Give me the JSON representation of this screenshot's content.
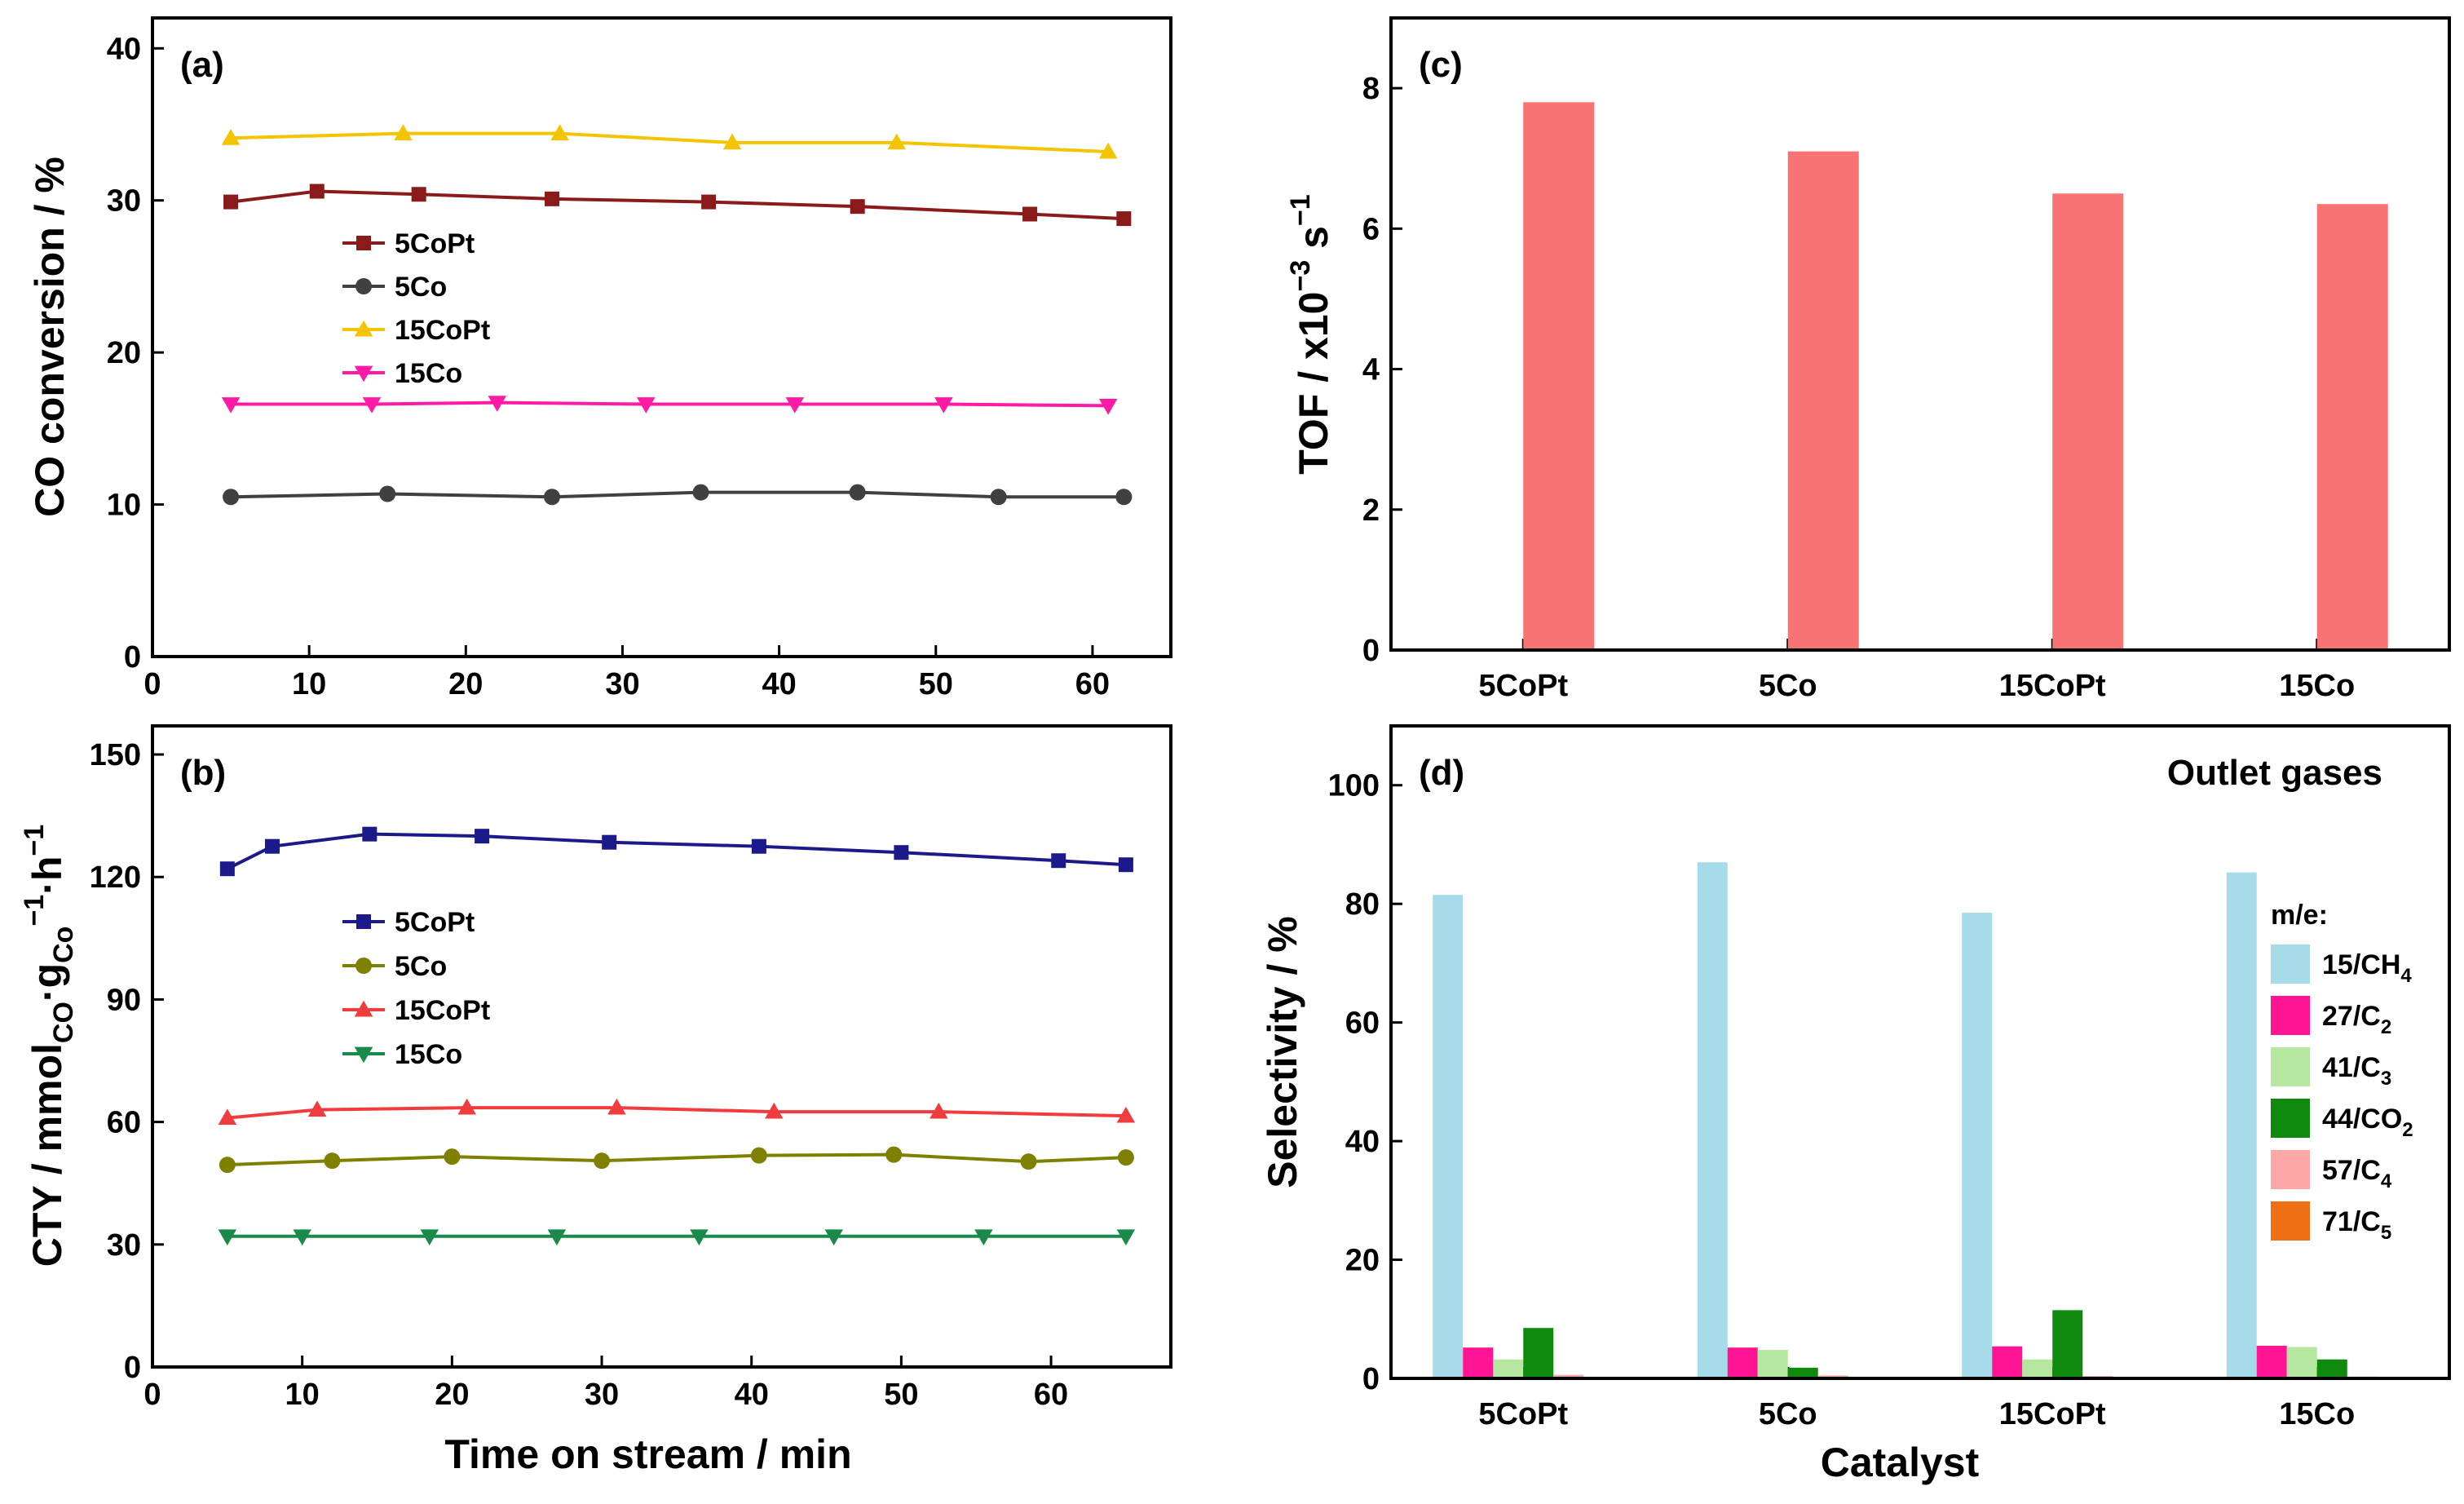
{
  "chart_data": [
    {
      "panel": "(a)",
      "type": "line",
      "xlabel": "",
      "ylabel": "CO conversion / %",
      "xlim": [
        0,
        65
      ],
      "ylim": [
        0,
        42
      ],
      "xticks": [
        0,
        10,
        20,
        30,
        40,
        50,
        60
      ],
      "yticks": [
        0,
        10,
        20,
        30,
        40
      ],
      "legend_position": "center-left",
      "series": [
        {
          "name": "5CoPt",
          "color": "#8b1a1a",
          "marker": "square",
          "x": [
            5,
            10.5,
            17,
            25.5,
            35.5,
            45,
            56,
            62
          ],
          "y": [
            29.9,
            30.6,
            30.4,
            30.1,
            29.9,
            29.6,
            29.1,
            28.8
          ]
        },
        {
          "name": "5Co",
          "color": "#404040",
          "marker": "circle",
          "x": [
            5,
            15,
            25.5,
            35,
            45,
            54,
            62
          ],
          "y": [
            10.5,
            10.7,
            10.5,
            10.8,
            10.8,
            10.5,
            10.5
          ]
        },
        {
          "name": "15CoPt",
          "color": "#f5c400",
          "marker": "triangle-up",
          "x": [
            5,
            16,
            26,
            37,
            47.5,
            61
          ],
          "y": [
            34.1,
            34.4,
            34.4,
            33.8,
            33.8,
            33.2
          ]
        },
        {
          "name": "15Co",
          "color": "#ff1ba6",
          "marker": "triangle-down",
          "x": [
            5,
            14,
            22,
            31.5,
            41,
            50.5,
            61
          ],
          "y": [
            16.6,
            16.6,
            16.7,
            16.6,
            16.6,
            16.6,
            16.5
          ]
        }
      ]
    },
    {
      "panel": "(b)",
      "type": "line",
      "xlabel": "Time on stream / min",
      "ylabel": "CTY / mmol_CO·g_Co^-1·h^-1",
      "ylabel_parts": {
        "main1": "CTY / mmol",
        "sub1": "CO",
        "main2": "·g",
        "sub2": "Co",
        "sup2": "−1",
        "main3": "·h",
        "sup3": "−1"
      },
      "xlim": [
        0,
        68
      ],
      "ylim": [
        0,
        157
      ],
      "xticks": [
        0,
        10,
        20,
        30,
        40,
        50,
        60
      ],
      "yticks": [
        0,
        30,
        60,
        90,
        120,
        150
      ],
      "legend_position": "center-left",
      "series": [
        {
          "name": "5CoPt",
          "color": "#1c1a8a",
          "marker": "square",
          "x": [
            5,
            8,
            14.5,
            22,
            30.5,
            40.5,
            50,
            60.5,
            65
          ],
          "y": [
            122,
            127.5,
            130.5,
            130,
            128.5,
            127.5,
            126,
            124,
            123
          ]
        },
        {
          "name": "5Co",
          "color": "#808000",
          "marker": "circle",
          "x": [
            5,
            12,
            20,
            30,
            40.5,
            49.5,
            58.5,
            65
          ],
          "y": [
            49.5,
            50.5,
            51.5,
            50.5,
            51.8,
            52,
            50.3,
            51.3
          ]
        },
        {
          "name": "15CoPt",
          "color": "#f03c3c",
          "marker": "triangle-up",
          "x": [
            5,
            11,
            21,
            31,
            41.5,
            52.5,
            65
          ],
          "y": [
            61,
            63,
            63.5,
            63.5,
            62.5,
            62.5,
            61.5
          ]
        },
        {
          "name": "15Co",
          "color": "#1a8a4a",
          "marker": "triangle-down",
          "x": [
            5,
            10,
            18.5,
            27,
            36.5,
            45.5,
            55.5,
            65
          ],
          "y": [
            32,
            32,
            32,
            32,
            32,
            32,
            32,
            32
          ]
        }
      ]
    },
    {
      "panel": "(c)",
      "type": "bar",
      "xlabel": "",
      "ylabel": "TOF / x10^-3 s^-1",
      "ylabel_parts": {
        "main1": "TOF / x10",
        "sup1": "−3",
        "main2": " s",
        "sup2": "−1"
      },
      "categories": [
        "5CoPt",
        "5Co",
        "15CoPt",
        "15Co"
      ],
      "values": [
        7.8,
        7.1,
        6.5,
        6.35
      ],
      "color": "#f87474",
      "ylim": [
        0,
        9
      ],
      "yticks": [
        0,
        2,
        4,
        6,
        8
      ]
    },
    {
      "panel": "(d)",
      "type": "bar",
      "title": "Outlet gases",
      "xlabel": "Catalyst",
      "ylabel": "Selectivity / %",
      "ylim": [
        0,
        110
      ],
      "yticks": [
        0,
        20,
        40,
        60,
        80,
        100
      ],
      "categories": [
        "5CoPt",
        "5Co",
        "15CoPt",
        "15Co"
      ],
      "legend_title": "m/e:",
      "legend_position": "right",
      "series": [
        {
          "name": "15/CH4",
          "label_main": "15/CH",
          "label_sub": "4",
          "color": "#a6dbe9",
          "values": [
            81.5,
            87,
            78.5,
            85.3
          ]
        },
        {
          "name": "27/C2",
          "label_main": "27/C",
          "label_sub": "2",
          "color": "#ff1493",
          "values": [
            5.2,
            5.2,
            5.4,
            5.5
          ]
        },
        {
          "name": "41/C3",
          "label_main": "41/C",
          "label_sub": "3",
          "color": "#b5e7a0",
          "values": [
            3.2,
            4.8,
            3.2,
            5.3
          ]
        },
        {
          "name": "44/CO2",
          "label_main": "44/CO",
          "label_sub": "2",
          "color": "#0f8a0f",
          "values": [
            8.5,
            1.8,
            11.5,
            3.2
          ]
        },
        {
          "name": "57/C4",
          "label_main": "57/C",
          "label_sub": "4",
          "color": "#ffa7a7",
          "values": [
            0.6,
            0.5,
            0.4,
            0.3
          ]
        },
        {
          "name": "71/C5",
          "label_main": "71/C",
          "label_sub": "5",
          "color": "#ee6f14",
          "values": [
            0.2,
            0.2,
            0.2,
            0.1
          ]
        }
      ]
    }
  ]
}
